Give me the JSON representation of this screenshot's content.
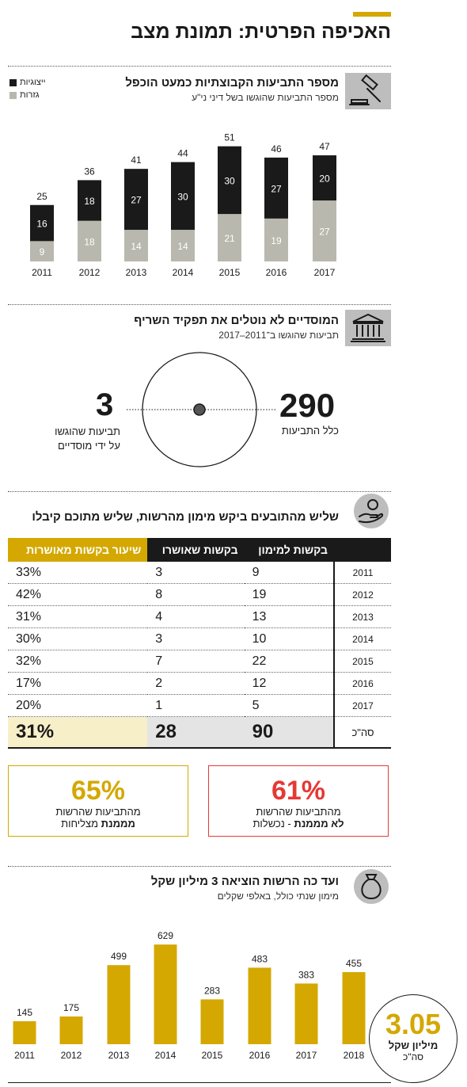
{
  "header": {
    "title": "האכיפה הפרטית: תמונת מצב"
  },
  "section1": {
    "title": "מספר התביעות הקבוצתיות כמעט הוכפל",
    "subtitle": "מספר התביעות שהוגשו בשל דיני ני\"ע",
    "icon": "gavel-icon"
  },
  "section2": {
    "title": "המוסדיים לא נוטלים את תפקיד השריף",
    "subtitle": "תביעות שהוגשו ב־2011–2017",
    "icon": "institution-icon",
    "big_value": "290",
    "big_label": "כלל התביעות",
    "small_value": "3",
    "small_label_1": "תביעות שהוגשו",
    "small_label_2": "על ידי מוסדיים"
  },
  "section3": {
    "title": "שליש מהתובעים ביקש מימון מהרשות, שליש מתוכם קיבלו",
    "icon": "hand-coin-icon",
    "headers": [
      "בקשות למימון",
      "בקשות שאושרו",
      "שיעור בקשות מאושרות"
    ],
    "rows": [
      {
        "year": "2011",
        "requests": "9",
        "approved": "3",
        "rate": "33%"
      },
      {
        "year": "2012",
        "requests": "19",
        "approved": "8",
        "rate": "42%"
      },
      {
        "year": "2013",
        "requests": "13",
        "approved": "4",
        "rate": "31%"
      },
      {
        "year": "2014",
        "requests": "10",
        "approved": "3",
        "rate": "30%"
      },
      {
        "year": "2015",
        "requests": "22",
        "approved": "7",
        "rate": "32%"
      },
      {
        "year": "2016",
        "requests": "12",
        "approved": "2",
        "rate": "17%"
      },
      {
        "year": "2017",
        "requests": "5",
        "approved": "1",
        "rate": "20%"
      }
    ],
    "total": {
      "label": "סה\"כ",
      "requests": "90",
      "approved": "28",
      "rate": "31%"
    }
  },
  "callouts": {
    "right": {
      "value": "61%",
      "line1": "מהתביעות שהרשות",
      "line2_bold": "לא מממנת",
      "line2_rest": " - נכשלות",
      "color": "#e53935"
    },
    "left": {
      "value": "65%",
      "line1": "מהתביעות שהרשות",
      "line2_bold": "מממנת",
      "line2_rest": " מצליחות",
      "color": "#d4a800"
    }
  },
  "section4": {
    "title": "ועד כה הרשות הוציאה 3 מיליון שקל",
    "subtitle": "מימון שנתי כולל, באלפי שקלים",
    "icon": "money-bag-icon",
    "total_value": "3.05",
    "total_unit": "מיליון שקל",
    "total_label": "סה\"כ"
  },
  "colors": {
    "black": "#1a1a1a",
    "gray": "#b8b8ae",
    "gold": "#d4a800",
    "red": "#e53935"
  },
  "chart_data": [
    {
      "type": "bar",
      "stacked": true,
      "title": "מספר התביעות הקבוצתיות כמעט הוכפל",
      "categories": [
        "2011",
        "2012",
        "2013",
        "2014",
        "2015",
        "2016",
        "2017"
      ],
      "series": [
        {
          "name": "גזרות",
          "values": [
            9,
            18,
            14,
            14,
            21,
            19,
            27
          ],
          "color": "#b8b8ae"
        },
        {
          "name": "ייצוגיות",
          "values": [
            16,
            18,
            27,
            30,
            30,
            27,
            20
          ],
          "color": "#1a1a1a"
        }
      ],
      "totals": [
        25,
        36,
        41,
        44,
        51,
        46,
        47
      ],
      "legend": "top-left"
    },
    {
      "type": "bar",
      "title": "ועד כה הרשות הוציאה 3 מיליון שקל",
      "categories": [
        "2011",
        "2012",
        "2013",
        "2014",
        "2015",
        "2016",
        "2017",
        "2018"
      ],
      "values": [
        145,
        175,
        499,
        629,
        283,
        483,
        383,
        455
      ],
      "color": "#d4a800"
    }
  ]
}
